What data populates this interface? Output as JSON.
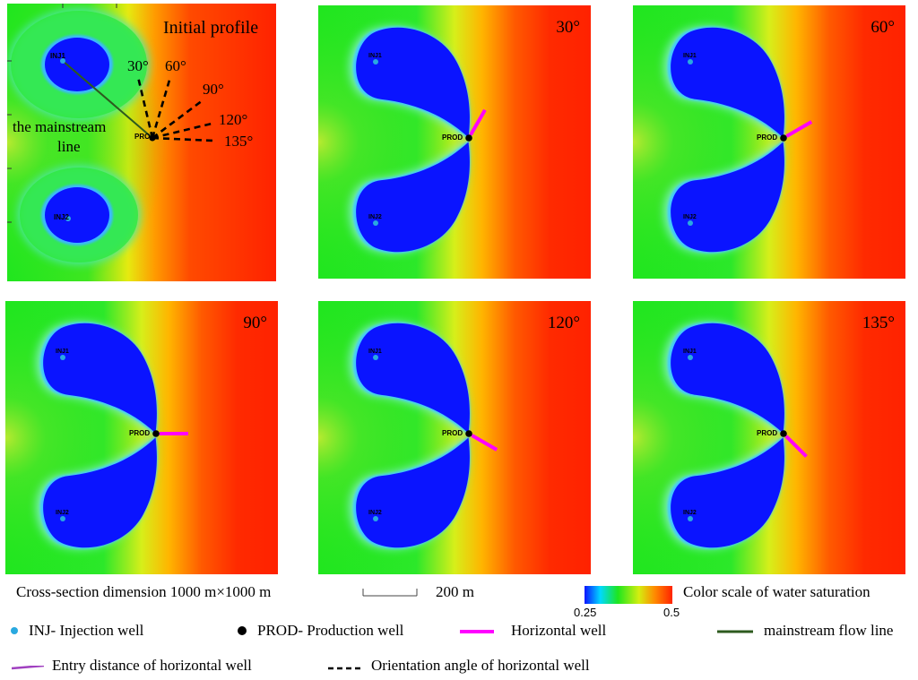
{
  "panels": [
    {
      "id": "initial",
      "title": "Initial profile",
      "angle": null
    },
    {
      "id": "a30",
      "title": "30°",
      "angle": 30
    },
    {
      "id": "a60",
      "title": "60°",
      "angle": 60
    },
    {
      "id": "a90",
      "title": "90°",
      "angle": 90
    },
    {
      "id": "a120",
      "title": "120°",
      "angle": 120
    },
    {
      "id": "a135",
      "title": "135°",
      "angle": 135
    }
  ],
  "wells": {
    "inj1": "INJ1",
    "inj2": "INJ2",
    "prod": "PROD"
  },
  "initial_annotations": {
    "mainstream_line": "the mainstream line",
    "mainstream_line_1": "the mainstream",
    "mainstream_line_2": "line",
    "angles": [
      "30°",
      "60°",
      "90°",
      "120°",
      "135°"
    ]
  },
  "footer": {
    "cross_section": "Cross-section dimension  1000 m×1000 m",
    "scale_bar": "200 m",
    "color_scale_title": "Color scale of water saturation",
    "color_scale_min": "0.25",
    "color_scale_max": "0.5"
  },
  "legend": {
    "inj": "INJ- Injection well",
    "prod": "PROD- Production well",
    "horizontal": "Horizontal well",
    "mainstream": "mainstream flow line",
    "entry": "Entry distance of horizontal well",
    "orientation": "Orientation angle of horizontal well"
  },
  "colors": {
    "oil": "#ff2a00",
    "water": "#0a14ff",
    "mid": "#1ee61e",
    "inj_marker": "#29a9e0",
    "prod_marker": "#000000",
    "horizontal_well": "#ff00ff",
    "entry": "#a040c0",
    "mainstream": "#2d5a1e"
  }
}
